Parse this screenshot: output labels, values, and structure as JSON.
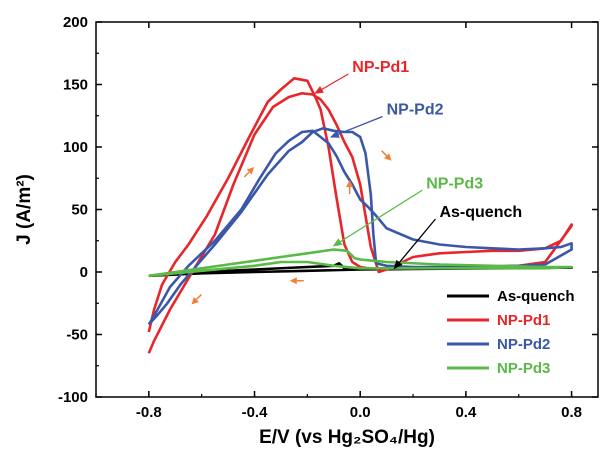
{
  "chart_data": {
    "type": "line",
    "title": "",
    "xlabel": "E/V (vs Hg₂SO₄/Hg)",
    "ylabel": "J (A/m²)",
    "xlim": [
      -1.0,
      0.9
    ],
    "ylim": [
      -100,
      200
    ],
    "xticks": [
      -0.8,
      -0.4,
      0.0,
      0.4,
      0.8
    ],
    "xtick_labels": [
      "-0.8",
      "-0.4",
      "0.0",
      "0.4",
      "0.8"
    ],
    "yticks": [
      -100,
      -50,
      0,
      50,
      100,
      150,
      200
    ],
    "ytick_labels": [
      "-100",
      "-50",
      "0",
      "50",
      "100",
      "150",
      "200"
    ],
    "grid": false,
    "legend_position": "bottom-right",
    "series": [
      {
        "name": "As-quench",
        "color": "#000000",
        "x": [
          -0.8,
          -0.6,
          -0.4,
          -0.2,
          -0.1,
          -0.08,
          -0.06,
          -0.04,
          0.0,
          0.1,
          0.3,
          0.5,
          0.8,
          0.5,
          0.2,
          0.0,
          -0.2,
          -0.4,
          -0.6,
          -0.8
        ],
        "y": [
          -3,
          0,
          2,
          4,
          5,
          7,
          3,
          2,
          2,
          3,
          3.5,
          3.5,
          3.5,
          3,
          2.5,
          2,
          1,
          0,
          -1,
          -3
        ]
      },
      {
        "name": "NP-Pd1",
        "color": "#e8262a",
        "x": [
          -0.8,
          -0.78,
          -0.72,
          -0.65,
          -0.55,
          -0.48,
          -0.4,
          -0.33,
          -0.27,
          -0.22,
          -0.18,
          -0.15,
          -0.12,
          -0.09,
          -0.06,
          -0.03,
          0.0,
          0.02,
          0.04,
          0.07,
          0.1,
          0.2,
          0.3,
          0.4,
          0.5,
          0.6,
          0.7,
          0.76,
          0.8,
          0.8,
          0.7,
          0.6,
          0.4,
          0.2,
          0.1,
          0.05,
          0.03,
          0.0,
          -0.03,
          -0.06,
          -0.09,
          -0.12,
          -0.15,
          -0.17,
          -0.2,
          -0.25,
          -0.3,
          -0.35,
          -0.42,
          -0.5,
          -0.58,
          -0.65,
          -0.7,
          -0.75,
          -0.78,
          -0.8
        ],
        "y": [
          -65,
          -55,
          -30,
          -5,
          30,
          70,
          110,
          132,
          140,
          143,
          142,
          138,
          130,
          118,
          104,
          92,
          70,
          45,
          20,
          0,
          2,
          12,
          15,
          16,
          17,
          17,
          19,
          25,
          38,
          37,
          8,
          5,
          4,
          3,
          3,
          3,
          3,
          4,
          8,
          22,
          60,
          100,
          130,
          140,
          153,
          155,
          146,
          136,
          108,
          75,
          45,
          22,
          8,
          -10,
          -30,
          -48
        ]
      },
      {
        "name": "NP-Pd2",
        "color": "#3b58a8",
        "x": [
          -0.8,
          -0.78,
          -0.72,
          -0.65,
          -0.55,
          -0.45,
          -0.38,
          -0.32,
          -0.27,
          -0.22,
          -0.18,
          -0.15,
          -0.12,
          -0.09,
          -0.06,
          -0.03,
          0.0,
          0.03,
          0.06,
          0.1,
          0.2,
          0.3,
          0.4,
          0.5,
          0.6,
          0.7,
          0.76,
          0.8,
          0.8,
          0.7,
          0.6,
          0.4,
          0.2,
          0.1,
          0.06,
          0.05,
          0.04,
          0.02,
          0.0,
          -0.03,
          -0.06,
          -0.1,
          -0.14,
          -0.18,
          -0.22,
          -0.27,
          -0.35,
          -0.45,
          -0.55,
          -0.62,
          -0.68,
          -0.73,
          -0.77,
          -0.8
        ],
        "y": [
          -42,
          -35,
          -12,
          5,
          25,
          50,
          75,
          95,
          105,
          112,
          113,
          108,
          103,
          93,
          80,
          70,
          58,
          52,
          45,
          35,
          26,
          22,
          20,
          19,
          18,
          19,
          20,
          23,
          18,
          6,
          5,
          4,
          4,
          5,
          7,
          30,
          62,
          95,
          108,
          112,
          112,
          113,
          115,
          112,
          104,
          97,
          78,
          48,
          22,
          5,
          -10,
          -25,
          -35,
          -42
        ]
      },
      {
        "name": "NP-Pd3",
        "color": "#5ab947",
        "x": [
          -0.8,
          -0.7,
          -0.6,
          -0.5,
          -0.4,
          -0.3,
          -0.2,
          -0.1,
          -0.05,
          -0.02,
          0.0,
          0.1,
          0.3,
          0.5,
          0.7,
          0.8,
          0.7,
          0.5,
          0.3,
          0.1,
          0.0,
          -0.1,
          -0.2,
          -0.3,
          -0.4,
          -0.5,
          -0.6,
          -0.7,
          -0.8
        ],
        "y": [
          -3,
          0,
          3,
          6,
          9,
          12,
          15,
          18,
          17,
          11,
          10,
          8,
          6,
          5,
          4,
          4,
          3,
          3,
          3,
          3,
          3,
          5,
          8,
          8,
          5,
          3,
          1,
          -1,
          -3
        ]
      }
    ],
    "legend": [
      {
        "label": "As-quench",
        "color": "#000000"
      },
      {
        "label": "NP-Pd1",
        "color": "#e8262a"
      },
      {
        "label": "NP-Pd2",
        "color": "#3b58a8"
      },
      {
        "label": "NP-Pd3",
        "color": "#5ab947"
      }
    ],
    "annotations": [
      {
        "label": "NP-Pd1",
        "color": "#e8262a",
        "text_x": -0.03,
        "text_y": 160,
        "arrow_to": [
          -0.17,
          143
        ]
      },
      {
        "label": "NP-Pd2",
        "color": "#3b58a8",
        "text_x": 0.1,
        "text_y": 126,
        "arrow_to": [
          -0.11,
          108
        ]
      },
      {
        "label": "NP-Pd3",
        "color": "#5ab947",
        "text_x": 0.25,
        "text_y": 67,
        "arrow_to": [
          -0.1,
          21
        ]
      },
      {
        "label": "As-quench",
        "color": "#000000",
        "text_x": 0.3,
        "text_y": 44,
        "arrow_to": [
          0.13,
          3
        ]
      }
    ],
    "direction_arrows": [
      {
        "color": "#f28033",
        "x": -0.42,
        "y": 80,
        "direction": "up-right"
      },
      {
        "color": "#f28033",
        "x": 0.1,
        "y": 93,
        "direction": "down-right"
      },
      {
        "color": "#f28033",
        "x": -0.04,
        "y": 68,
        "direction": "up"
      },
      {
        "color": "#f28033",
        "x": -0.24,
        "y": -7,
        "direction": "left"
      },
      {
        "color": "#f28033",
        "x": -0.62,
        "y": -22,
        "direction": "down-left"
      }
    ]
  }
}
